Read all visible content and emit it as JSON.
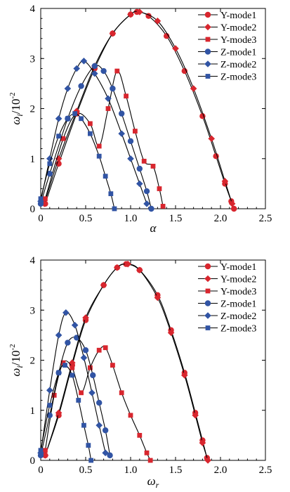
{
  "colors": {
    "red": "#d8262e",
    "blue": "#3154a4",
    "curve": "#000000"
  },
  "chart_data": [
    {
      "type": "line",
      "xlabel": "α",
      "ylabel": "ω",
      "ylabel_sub": "i",
      "ylabel_unit": "/10",
      "ylabel_unit_exp": "-2",
      "xlim": [
        0,
        2.5
      ],
      "ylim": [
        0,
        4
      ],
      "xticks": [
        "0",
        "0.5",
        "1.0",
        "1.5",
        "2.0",
        "2.5"
      ],
      "yticks": [
        "0",
        "1",
        "2",
        "3",
        "4"
      ],
      "grid": false,
      "legend": "top-right",
      "series": [
        {
          "name": "Y-mode1",
          "color": "#d8262e",
          "marker": "circle",
          "points": [
            [
              0.05,
              0.1
            ],
            [
              0.2,
              0.9
            ],
            [
              0.4,
              1.9
            ],
            [
              0.6,
              2.8
            ],
            [
              0.8,
              3.5
            ],
            [
              1.0,
              3.88
            ],
            [
              1.07,
              3.93
            ],
            [
              1.2,
              3.85
            ],
            [
              1.4,
              3.45
            ],
            [
              1.6,
              2.75
            ],
            [
              1.8,
              1.85
            ],
            [
              1.95,
              1.05
            ],
            [
              2.05,
              0.5
            ],
            [
              2.12,
              0.15
            ],
            [
              2.15,
              0.0
            ]
          ]
        },
        {
          "name": "Y-mode2",
          "color": "#d8262e",
          "marker": "diamond",
          "points": [
            [
              0.04,
              0.1
            ],
            [
              0.2,
              1.0
            ],
            [
              0.4,
              1.95
            ],
            [
              0.6,
              2.85
            ],
            [
              0.8,
              3.5
            ],
            [
              1.0,
              3.88
            ],
            [
              1.1,
              3.93
            ],
            [
              1.3,
              3.75
            ],
            [
              1.5,
              3.2
            ],
            [
              1.7,
              2.4
            ],
            [
              1.9,
              1.4
            ],
            [
              2.05,
              0.55
            ],
            [
              2.13,
              0.1
            ]
          ]
        },
        {
          "name": "Y-mode3",
          "color": "#d8262e",
          "marker": "square",
          "points": [
            [
              0.05,
              0.2
            ],
            [
              0.25,
              1.4
            ],
            [
              0.4,
              1.9
            ],
            [
              0.55,
              1.7
            ],
            [
              0.65,
              1.25
            ],
            [
              0.75,
              2.0
            ],
            [
              0.85,
              2.75
            ],
            [
              0.95,
              2.25
            ],
            [
              1.05,
              1.55
            ],
            [
              1.15,
              0.95
            ],
            [
              1.25,
              0.85
            ],
            [
              1.32,
              0.4
            ],
            [
              1.36,
              0.05
            ]
          ]
        },
        {
          "name": "Z-mode1",
          "color": "#3154a4",
          "marker": "circle",
          "points": [
            [
              0.0,
              0.1
            ],
            [
              0.1,
              0.7
            ],
            [
              0.3,
              1.8
            ],
            [
              0.45,
              2.45
            ],
            [
              0.6,
              2.85
            ],
            [
              0.7,
              2.75
            ],
            [
              0.8,
              2.4
            ],
            [
              0.9,
              1.9
            ],
            [
              1.0,
              1.35
            ],
            [
              1.1,
              0.8
            ],
            [
              1.18,
              0.35
            ],
            [
              1.23,
              0.0
            ]
          ]
        },
        {
          "name": "Z-mode2",
          "color": "#3154a4",
          "marker": "diamond",
          "points": [
            [
              0.0,
              0.15
            ],
            [
              0.1,
              1.0
            ],
            [
              0.2,
              1.8
            ],
            [
              0.3,
              2.4
            ],
            [
              0.4,
              2.8
            ],
            [
              0.48,
              2.95
            ],
            [
              0.6,
              2.7
            ],
            [
              0.75,
              2.2
            ],
            [
              0.9,
              1.5
            ],
            [
              1.0,
              1.0
            ],
            [
              1.1,
              0.5
            ],
            [
              1.18,
              0.1
            ]
          ]
        },
        {
          "name": "Z-mode3",
          "color": "#3154a4",
          "marker": "square",
          "points": [
            [
              0.0,
              0.2
            ],
            [
              0.1,
              0.9
            ],
            [
              0.2,
              1.45
            ],
            [
              0.3,
              1.8
            ],
            [
              0.38,
              1.9
            ],
            [
              0.45,
              1.8
            ],
            [
              0.55,
              1.5
            ],
            [
              0.65,
              1.05
            ],
            [
              0.72,
              0.65
            ],
            [
              0.78,
              0.3
            ],
            [
              0.82,
              0.0
            ]
          ]
        }
      ]
    },
    {
      "type": "line",
      "xlabel": "ω",
      "xlabel_sub": "r",
      "ylabel": "ω",
      "ylabel_sub": "i",
      "ylabel_unit": "/10",
      "ylabel_unit_exp": "-2",
      "xlim": [
        0,
        2.5
      ],
      "ylim": [
        0,
        4
      ],
      "xticks": [
        "0",
        "0.5",
        "1.0",
        "1.5",
        "2.0",
        "2.5"
      ],
      "yticks": [
        "0",
        "1",
        "2",
        "3",
        "4"
      ],
      "grid": false,
      "legend": "top-right",
      "series": [
        {
          "name": "Y-mode1",
          "color": "#d8262e",
          "marker": "circle",
          "points": [
            [
              0.05,
              0.1
            ],
            [
              0.2,
              0.9
            ],
            [
              0.35,
              1.9
            ],
            [
              0.5,
              2.8
            ],
            [
              0.7,
              3.5
            ],
            [
              0.85,
              3.85
            ],
            [
              0.95,
              3.92
            ],
            [
              1.1,
              3.8
            ],
            [
              1.3,
              3.3
            ],
            [
              1.45,
              2.6
            ],
            [
              1.6,
              1.75
            ],
            [
              1.72,
              0.95
            ],
            [
              1.8,
              0.4
            ],
            [
              1.85,
              0.05
            ]
          ]
        },
        {
          "name": "Y-mode2",
          "color": "#d8262e",
          "marker": "diamond",
          "points": [
            [
              0.05,
              0.1
            ],
            [
              0.2,
              0.95
            ],
            [
              0.35,
              1.95
            ],
            [
              0.5,
              2.85
            ],
            [
              0.7,
              3.5
            ],
            [
              0.85,
              3.85
            ],
            [
              0.97,
              3.92
            ],
            [
              1.1,
              3.8
            ],
            [
              1.3,
              3.25
            ],
            [
              1.45,
              2.55
            ],
            [
              1.6,
              1.7
            ],
            [
              1.72,
              0.9
            ],
            [
              1.8,
              0.35
            ],
            [
              1.86,
              0.0
            ]
          ]
        },
        {
          "name": "Y-mode3",
          "color": "#d8262e",
          "marker": "square",
          "points": [
            [
              0.05,
              0.2
            ],
            [
              0.15,
              1.3
            ],
            [
              0.25,
              1.95
            ],
            [
              0.35,
              1.85
            ],
            [
              0.45,
              1.35
            ],
            [
              0.55,
              1.85
            ],
            [
              0.65,
              2.2
            ],
            [
              0.72,
              2.25
            ],
            [
              0.8,
              1.9
            ],
            [
              0.9,
              1.35
            ],
            [
              1.0,
              0.9
            ],
            [
              1.1,
              0.5
            ],
            [
              1.18,
              0.15
            ],
            [
              1.22,
              0.0
            ]
          ]
        },
        {
          "name": "Z-mode1",
          "color": "#3154a4",
          "marker": "circle",
          "points": [
            [
              0.0,
              0.1
            ],
            [
              0.1,
              0.9
            ],
            [
              0.2,
              1.75
            ],
            [
              0.3,
              2.35
            ],
            [
              0.4,
              2.45
            ],
            [
              0.5,
              2.2
            ],
            [
              0.58,
              1.7
            ],
            [
              0.65,
              1.15
            ],
            [
              0.72,
              0.6
            ],
            [
              0.77,
              0.1
            ]
          ]
        },
        {
          "name": "Z-mode2",
          "color": "#3154a4",
          "marker": "diamond",
          "points": [
            [
              0.0,
              0.15
            ],
            [
              0.1,
              1.4
            ],
            [
              0.2,
              2.5
            ],
            [
              0.28,
              2.95
            ],
            [
              0.38,
              2.7
            ],
            [
              0.48,
              2.05
            ],
            [
              0.57,
              1.35
            ],
            [
              0.65,
              0.7
            ],
            [
              0.72,
              0.15
            ]
          ]
        },
        {
          "name": "Z-mode3",
          "color": "#3154a4",
          "marker": "square",
          "points": [
            [
              0.0,
              0.2
            ],
            [
              0.1,
              1.1
            ],
            [
              0.2,
              1.75
            ],
            [
              0.27,
              1.9
            ],
            [
              0.35,
              1.7
            ],
            [
              0.42,
              1.2
            ],
            [
              0.48,
              0.7
            ],
            [
              0.53,
              0.3
            ],
            [
              0.56,
              0.0
            ]
          ]
        }
      ]
    }
  ]
}
